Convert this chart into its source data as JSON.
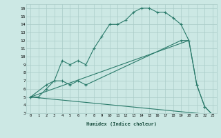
{
  "xlabel": "Humidex (Indice chaleur)",
  "bg_color": "#cce8e4",
  "grid_color": "#aaccc8",
  "line_color": "#2a7a6a",
  "xlim": [
    -0.5,
    23.5
  ],
  "ylim": [
    3,
    16.5
  ],
  "xticks": [
    0,
    1,
    2,
    3,
    4,
    5,
    6,
    7,
    8,
    9,
    10,
    11,
    12,
    13,
    14,
    15,
    16,
    17,
    18,
    19,
    20,
    21,
    22,
    23
  ],
  "yticks": [
    3,
    4,
    5,
    6,
    7,
    8,
    9,
    10,
    11,
    12,
    13,
    14,
    15,
    16
  ],
  "series": [
    {
      "x": [
        0,
        1,
        2,
        3,
        4,
        5,
        6,
        7,
        8,
        9,
        10,
        11,
        12,
        13,
        14,
        15,
        16,
        17,
        18,
        19,
        20,
        21,
        22,
        23
      ],
      "y": [
        5,
        5,
        6,
        7,
        9.5,
        9,
        9.5,
        9,
        11,
        12.5,
        14,
        14,
        14.5,
        15.5,
        16,
        16,
        15.5,
        15.5,
        14.8,
        14,
        12,
        6.5,
        3.8,
        2.8
      ],
      "marker": true
    },
    {
      "x": [
        0,
        2,
        3,
        4,
        5,
        6,
        7,
        19,
        20,
        21,
        22,
        23
      ],
      "y": [
        5,
        6.5,
        7,
        7,
        6.5,
        7,
        6.5,
        12,
        12,
        6.5,
        3.8,
        2.8
      ],
      "marker": true
    },
    {
      "x": [
        0,
        20
      ],
      "y": [
        5,
        12
      ],
      "marker": false
    },
    {
      "x": [
        0,
        23
      ],
      "y": [
        5,
        2.8
      ],
      "marker": false
    }
  ]
}
